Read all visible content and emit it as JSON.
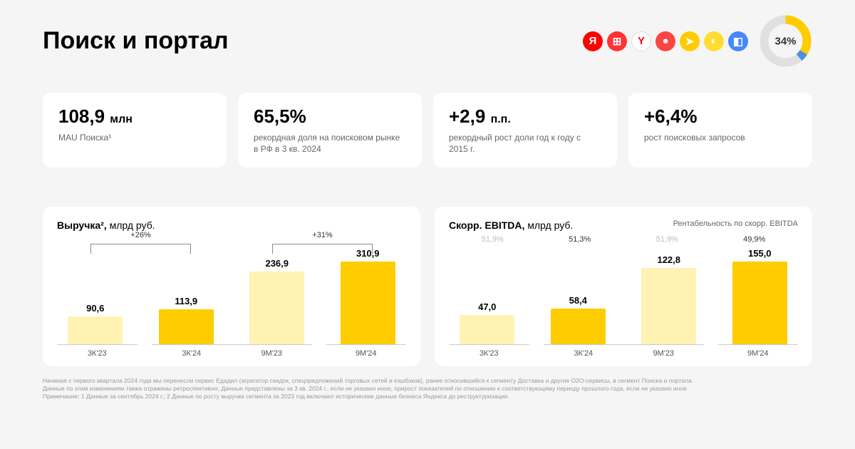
{
  "title": "Поиск и портал",
  "header_icon_colors": [
    "#ff0000",
    "#ff3333",
    "#ffffff",
    "#ff4444",
    "#ffcc00",
    "#ffdd33",
    "#4488ff"
  ],
  "header_icon_glyphs": [
    "Я",
    "⊞",
    "Y",
    "●",
    "➤",
    "◐",
    "◧"
  ],
  "donut": {
    "percent": 34,
    "label": "34%",
    "fill_color": "#ffcc00",
    "track_color": "#e0e0e0",
    "accent_color": "#4a90e2"
  },
  "kpis": [
    {
      "value": "108,9",
      "unit": "млн",
      "desc": "MAU Поиска¹"
    },
    {
      "value": "65,5%",
      "unit": "",
      "desc": "рекордная доля на поисковом рынке в РФ в 3 кв. 2024"
    },
    {
      "value": "+2,9",
      "unit": "п.п.",
      "desc": "рекордный рост доли год к году с 2015 г."
    },
    {
      "value": "+6,4%",
      "unit": "",
      "desc": "рост поисковых запросов"
    }
  ],
  "charts": {
    "revenue": {
      "title": "Выручка²,",
      "unit": "млрд руб.",
      "max_value": 310.9,
      "bar_color_prev": "#fff2b3",
      "bar_color_curr": "#ffcc00",
      "pairs": [
        {
          "growth": "+26%",
          "bars": [
            {
              "label": "3К'23",
              "value_text": "90,6",
              "value": 90.6,
              "kind": "prev"
            },
            {
              "label": "3К'24",
              "value_text": "113,9",
              "value": 113.9,
              "kind": "curr"
            }
          ]
        },
        {
          "growth": "+31%",
          "bars": [
            {
              "label": "9М'23",
              "value_text": "236,9",
              "value": 236.9,
              "kind": "prev"
            },
            {
              "label": "9М'24",
              "value_text": "310,9",
              "value": 310.9,
              "kind": "curr"
            }
          ]
        }
      ]
    },
    "ebitda": {
      "title": "Скорр. EBITDA,",
      "unit": "млрд руб.",
      "note": "Рентабельность по скорр. EBITDA",
      "max_value": 155.0,
      "bar_color_prev": "#fff2b3",
      "bar_color_curr": "#ffcc00",
      "margin_color_prev": "#bbbbbb",
      "margin_color_curr": "#333333",
      "pairs": [
        {
          "bars": [
            {
              "label": "3К'23",
              "value_text": "47,0",
              "value": 47.0,
              "margin": "51,9%",
              "kind": "prev"
            },
            {
              "label": "3К'24",
              "value_text": "58,4",
              "value": 58.4,
              "margin": "51,3%",
              "kind": "curr"
            }
          ]
        },
        {
          "bars": [
            {
              "label": "9М'23",
              "value_text": "122,8",
              "value": 122.8,
              "margin": "51,9%",
              "kind": "prev"
            },
            {
              "label": "9М'24",
              "value_text": "155,0",
              "value": 155.0,
              "margin": "49,9%",
              "kind": "curr"
            }
          ]
        }
      ]
    }
  },
  "footnotes": [
    "Начиная с первого квартала 2024 года мы перенесли сервис Едадил (агрегатор скидок, спецпредложений торговых сетей и кэшбэков), ранее относившийся к сегменту Доставка и другие O2O-сервисы, в сегмент Поиска и портала.",
    "Данные по этим изменениям также отражены ретроспективно; Данные представлены за 3 кв. 2024 г., если не указано иное, прирост показателей по отношению к соответствующему периоду прошлого года, если не указано иное",
    "Примечание: 1 Данные за сентябрь 2024 г.; 2 Данные по росту выручки сегмента за 2023 год включают исторические данные бизнеса Яндекса до реструктуризации"
  ]
}
